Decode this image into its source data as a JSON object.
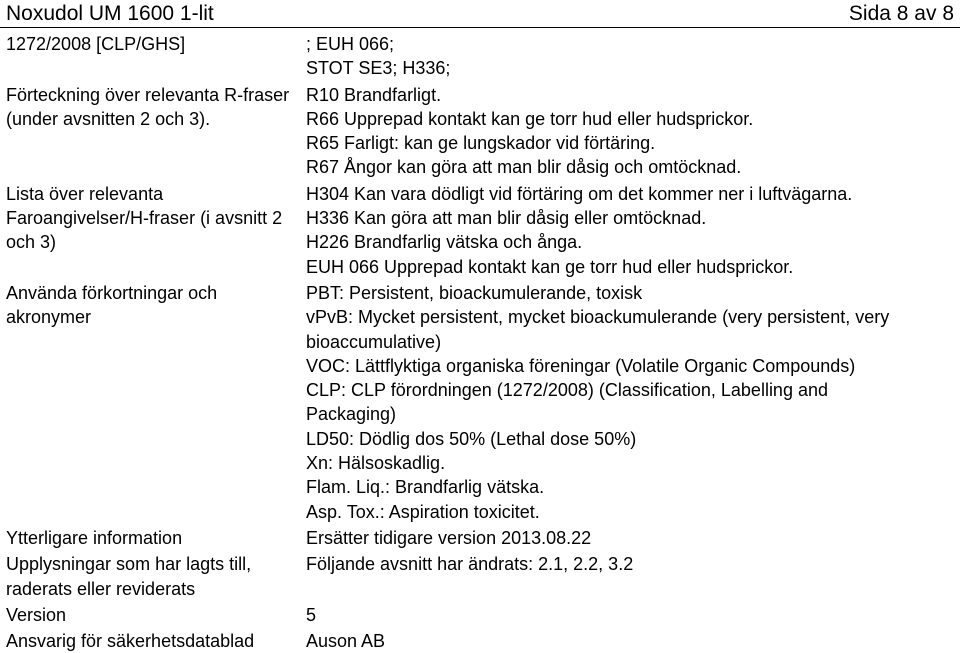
{
  "header": {
    "title": "Noxudol UM 1600 1-lit",
    "page_indicator": "Sida 8 av 8"
  },
  "rows": [
    {
      "label_lines": [
        "1272/2008 [CLP/GHS]"
      ],
      "value_lines": [
        "; EUH 066;",
        "STOT SE3; H336;"
      ]
    },
    {
      "label_lines": [
        "Förteckning över relevanta R-fraser",
        "(under avsnitten 2 och 3)."
      ],
      "value_lines": [
        "R10 Brandfarligt.",
        "R66 Upprepad kontakt kan ge torr hud eller hudsprickor.",
        "R65 Farligt: kan ge lungskador vid förtäring.",
        "R67 Ångor kan göra att man blir dåsig och omtöcknad."
      ]
    },
    {
      "label_lines": [
        "Lista över relevanta",
        "Faroangivelser/H-fraser (i avsnitt 2",
        "och 3)"
      ],
      "value_lines": [
        "H304 Kan vara dödligt vid förtäring om det kommer ner i luftvägarna.",
        "H336 Kan göra att man blir dåsig eller omtöcknad.",
        "H226 Brandfarlig vätska och ånga.",
        "EUH 066 Upprepad kontakt kan ge torr hud eller hudsprickor."
      ]
    },
    {
      "label_lines": [
        "Använda förkortningar och",
        "akronymer"
      ],
      "value_lines": [
        "PBT: Persistent, bioackumulerande, toxisk",
        "vPvB: Mycket persistent, mycket bioackumulerande (very persistent, very",
        "bioaccumulative)",
        "VOC: Lättflyktiga organiska föreningar (Volatile Organic Compounds)",
        "CLP: CLP förordningen (1272/2008) (Classification, Labelling and",
        "Packaging)",
        "LD50: Dödlig dos 50% (Lethal dose 50%)",
        "Xn: Hälsoskadlig.",
        "Flam. Liq.: Brandfarlig vätska.",
        "Asp. Tox.: Aspiration toxicitet."
      ]
    },
    {
      "label_lines": [
        "Ytterligare information"
      ],
      "value_lines": [
        "Ersätter tidigare version 2013.08.22"
      ]
    },
    {
      "label_lines": [
        "Upplysningar som har lagts till,",
        "raderats eller reviderats"
      ],
      "value_lines": [
        "Följande avsnitt har ändrats: 2.1, 2.2, 3.2"
      ]
    },
    {
      "label_lines": [
        "Version"
      ],
      "value_lines": [
        "5"
      ]
    },
    {
      "label_lines": [
        "Ansvarig för säkerhetsdatablad"
      ],
      "value_lines": [
        "Auson AB"
      ]
    }
  ]
}
